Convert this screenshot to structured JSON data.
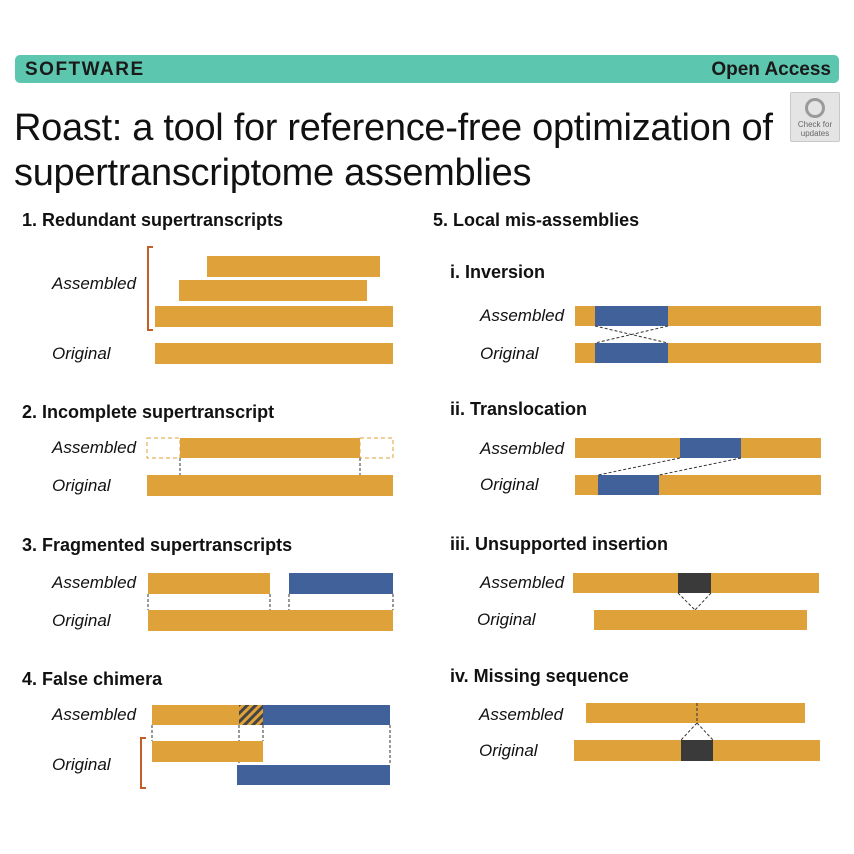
{
  "header": {
    "category": "SOFTWARE",
    "access": "Open Access",
    "title": "Roast: a tool for reference-free optimization of supertranscriptome assemblies",
    "check_badge": "Check for updates"
  },
  "colors": {
    "banner": "#5cc6ae",
    "gold": "#dfa23a",
    "blue": "#41619a",
    "dark": "#3a3a3a",
    "bracket": "#c25f28"
  },
  "panels": {
    "p1": {
      "heading": "1. Redundant supertranscripts",
      "assembled": "Assembled",
      "original": "Original"
    },
    "p2": {
      "heading": "2. Incomplete supertranscript",
      "assembled": "Assembled",
      "original": "Original"
    },
    "p3": {
      "heading": "3. Fragmented supertranscripts",
      "assembled": "Assembled",
      "original": "Original"
    },
    "p4": {
      "heading": "4. False chimera",
      "assembled": "Assembled",
      "original": "Original"
    },
    "p5": {
      "heading": "5. Local mis-assemblies",
      "i": {
        "heading": "i. Inversion",
        "assembled": "Assembled",
        "original": "Original"
      },
      "ii": {
        "heading": "ii. Translocation",
        "assembled": "Assembled",
        "original": "Original"
      },
      "iii": {
        "heading": "iii. Unsupported insertion",
        "assembled": "Assembled",
        "original": "Original"
      },
      "iv": {
        "heading": "iv. Missing sequence",
        "assembled": "Assembled",
        "original": "Original"
      }
    }
  }
}
